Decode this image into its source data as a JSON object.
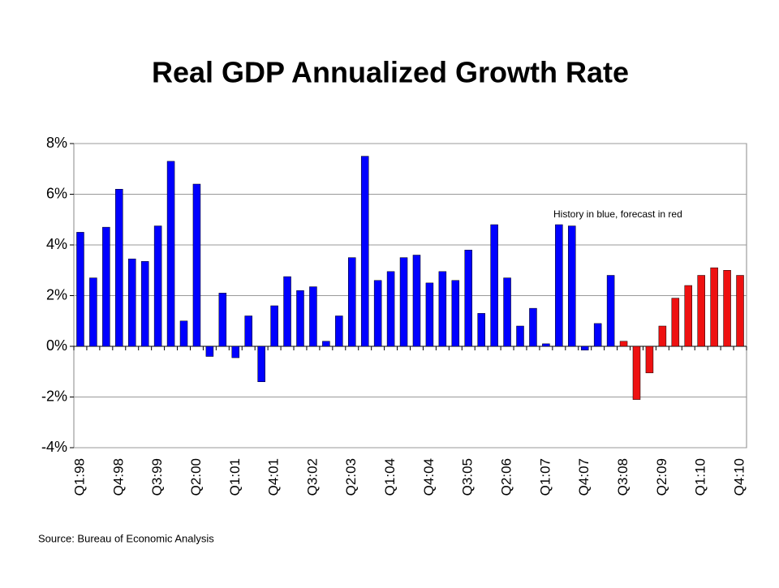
{
  "chart_data": {
    "type": "bar",
    "title": "Real GDP Annualized Growth Rate",
    "annotation": "History in blue, forecast in red",
    "source": "Source:  Bureau of Economic Analysis",
    "categories": [
      "Q1:98",
      null,
      null,
      "Q4:98",
      null,
      null,
      "Q3:99",
      null,
      null,
      "Q2:00",
      null,
      null,
      "Q1:01",
      null,
      null,
      "Q4:01",
      null,
      null,
      "Q3:02",
      null,
      null,
      "Q2:03",
      null,
      null,
      "Q1:04",
      null,
      null,
      "Q4:04",
      null,
      null,
      "Q3:05",
      null,
      null,
      "Q2:06",
      null,
      null,
      "Q1:07",
      null,
      null,
      "Q4:07",
      null,
      null,
      "Q3:08",
      null,
      null,
      "Q2:09",
      null,
      null,
      "Q1:10",
      null,
      null,
      "Q4:10"
    ],
    "values": [
      4.5,
      2.7,
      4.7,
      6.2,
      3.45,
      3.35,
      4.75,
      7.3,
      1.0,
      6.4,
      -0.4,
      2.1,
      -0.45,
      1.2,
      -1.4,
      1.6,
      2.75,
      2.2,
      2.35,
      0.2,
      1.2,
      3.5,
      7.5,
      2.6,
      2.95,
      3.5,
      3.6,
      2.5,
      2.95,
      2.6,
      3.8,
      1.3,
      4.8,
      2.7,
      0.8,
      1.5,
      0.1,
      4.8,
      4.75,
      -0.15,
      0.9,
      2.8,
      0.2,
      -2.1,
      -1.05,
      0.8,
      1.9,
      2.4,
      2.8,
      3.1,
      3.0,
      2.8
    ],
    "colors": [
      "#0000ff",
      "#0000ff",
      "#0000ff",
      "#0000ff",
      "#0000ff",
      "#0000ff",
      "#0000ff",
      "#0000ff",
      "#0000ff",
      "#0000ff",
      "#0000ff",
      "#0000ff",
      "#0000ff",
      "#0000ff",
      "#0000ff",
      "#0000ff",
      "#0000ff",
      "#0000ff",
      "#0000ff",
      "#0000ff",
      "#0000ff",
      "#0000ff",
      "#0000ff",
      "#0000ff",
      "#0000ff",
      "#0000ff",
      "#0000ff",
      "#0000ff",
      "#0000ff",
      "#0000ff",
      "#0000ff",
      "#0000ff",
      "#0000ff",
      "#0000ff",
      "#0000ff",
      "#0000ff",
      "#0000ff",
      "#0000ff",
      "#0000ff",
      "#0000ff",
      "#0000ff",
      "#0000ff",
      "#ee1111",
      "#ee1111",
      "#ee1111",
      "#ee1111",
      "#ee1111",
      "#ee1111",
      "#ee1111",
      "#ee1111",
      "#ee1111",
      "#ee1111"
    ],
    "ylim": [
      -4,
      8
    ],
    "yticks": [
      {
        "value": -4,
        "label": "-4%"
      },
      {
        "value": -2,
        "label": "-2%"
      },
      {
        "value": 0,
        "label": "0%"
      },
      {
        "value": 2,
        "label": "2%"
      },
      {
        "value": 4,
        "label": "4%"
      },
      {
        "value": 6,
        "label": "6%"
      },
      {
        "value": 8,
        "label": "8%"
      }
    ],
    "grid": true
  }
}
